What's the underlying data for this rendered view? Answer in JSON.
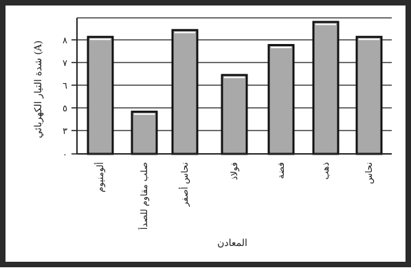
{
  "chart_data": {
    "type": "bar",
    "ylabel": "شدة التيار الكهربائي (A)",
    "xlabel": "المعادن",
    "yticks": [
      "٠",
      "٣",
      "٥",
      "٦",
      "٧",
      "٨"
    ],
    "ylim": [
      0,
      10
    ],
    "grid": true,
    "categories": [
      "ألومنيوم",
      "صلب مقاوم للصدأ",
      "نحاس أصفر",
      "فولاذ",
      "فضة",
      "ذهب",
      "نحاس"
    ],
    "values": [
      8.6,
      3.1,
      9.1,
      5.8,
      8.0,
      9.7,
      8.6
    ]
  },
  "colors": {
    "frame": "#2b2b2b",
    "bar_fill": "#a9a9a9",
    "bar_stroke": "#111111",
    "grid": "#3a3a3a"
  }
}
